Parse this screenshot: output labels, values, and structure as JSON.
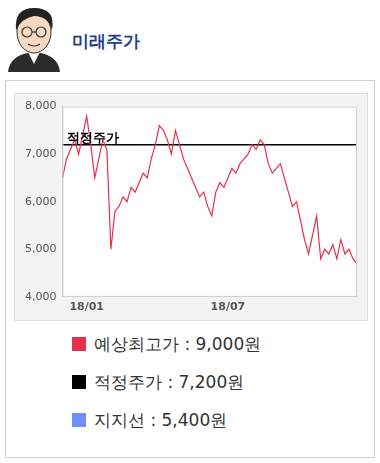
{
  "header": {
    "title": "미래주가"
  },
  "chart_data": {
    "type": "line",
    "categories": [
      null,
      null,
      null,
      null,
      null,
      null,
      "18/01",
      null,
      null,
      null,
      null,
      null,
      null,
      null,
      null,
      null,
      null,
      null,
      null,
      null,
      null,
      null,
      null,
      null,
      null,
      null,
      null,
      null,
      null,
      null,
      null,
      null,
      null,
      null,
      null,
      null,
      null,
      null,
      null,
      null,
      null,
      "18/07",
      null,
      null,
      null,
      null,
      null,
      null,
      null,
      null,
      null,
      null,
      null,
      null,
      null,
      null,
      null,
      null,
      null,
      null,
      null,
      null,
      null,
      null,
      null,
      null,
      null,
      null,
      null,
      null,
      null,
      null,
      null,
      null
    ],
    "values": [
      6500,
      6900,
      7100,
      7300,
      7000,
      7400,
      7800,
      7200,
      6500,
      6900,
      7300,
      7100,
      5000,
      5800,
      5900,
      6100,
      6000,
      6300,
      6200,
      6400,
      6600,
      6500,
      6900,
      7200,
      7600,
      7500,
      7300,
      7000,
      7500,
      7200,
      6900,
      6700,
      6500,
      6300,
      6100,
      6200,
      5900,
      5700,
      6200,
      6400,
      6300,
      6500,
      6700,
      6600,
      6800,
      6900,
      7000,
      7200,
      7100,
      7300,
      7200,
      6800,
      6600,
      6700,
      6800,
      6500,
      6200,
      5900,
      6000,
      5600,
      5200,
      4900,
      5300,
      5700,
      4800,
      5000,
      4900,
      5100,
      4800,
      5200,
      4900,
      5000,
      4800,
      4700
    ],
    "color": "#e8304a",
    "ylim": [
      4000,
      8000
    ],
    "yticks": [
      {
        "value": 4000,
        "label": "4,000"
      },
      {
        "value": 5000,
        "label": "5,000"
      },
      {
        "value": 6000,
        "label": "6,000"
      },
      {
        "value": 7000,
        "label": "7,000"
      },
      {
        "value": 8000,
        "label": "8,000"
      }
    ],
    "grid": false,
    "reference_line": {
      "value": 7200,
      "label": "적정주가",
      "color": "#000000"
    }
  },
  "summary": [
    {
      "color": "#e8304a",
      "text": "예상최고가 : 9,000원"
    },
    {
      "color": "#000000",
      "text": "적정주가 : 7,200원"
    },
    {
      "color": "#6f8ff5",
      "text": "지지선 : 5,400원"
    }
  ]
}
